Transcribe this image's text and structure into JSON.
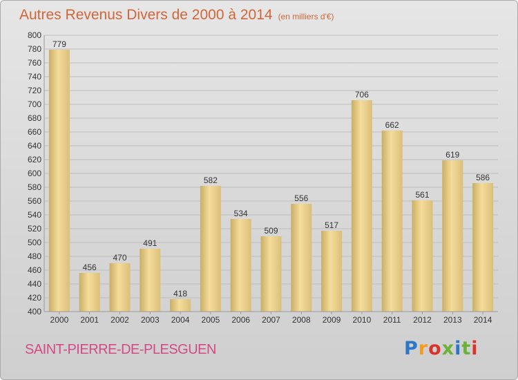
{
  "header": {
    "title": "Autres Revenus Divers de 2000 à 2014",
    "subtitle": "(en milliers d'€)"
  },
  "footer": {
    "commune": "SAINT-PIERRE-DE-PLESGUEN",
    "logo": [
      "P",
      "r",
      "o",
      "x",
      "i",
      "t",
      "i"
    ]
  },
  "colors": {
    "title": "#d0663a",
    "commune": "#d24a86",
    "bar_light": "#f6dc9a",
    "bar_dark": "#c9ae66"
  },
  "chart_data": {
    "type": "bar",
    "title": "Autres Revenus Divers de 2000 à 2014",
    "xlabel": "",
    "ylabel": "",
    "categories": [
      "2000",
      "2001",
      "2002",
      "2003",
      "2004",
      "2005",
      "2006",
      "2007",
      "2008",
      "2009",
      "2010",
      "2011",
      "2012",
      "2013",
      "2014"
    ],
    "values": [
      779,
      456,
      470,
      491,
      418,
      582,
      534,
      509,
      556,
      517,
      706,
      662,
      561,
      619,
      586
    ],
    "ylim": [
      400,
      800
    ],
    "yticks": [
      400,
      420,
      440,
      460,
      480,
      500,
      520,
      540,
      560,
      580,
      600,
      620,
      640,
      660,
      680,
      700,
      720,
      740,
      760,
      780,
      800
    ],
    "grid": true,
    "legend": "none"
  }
}
